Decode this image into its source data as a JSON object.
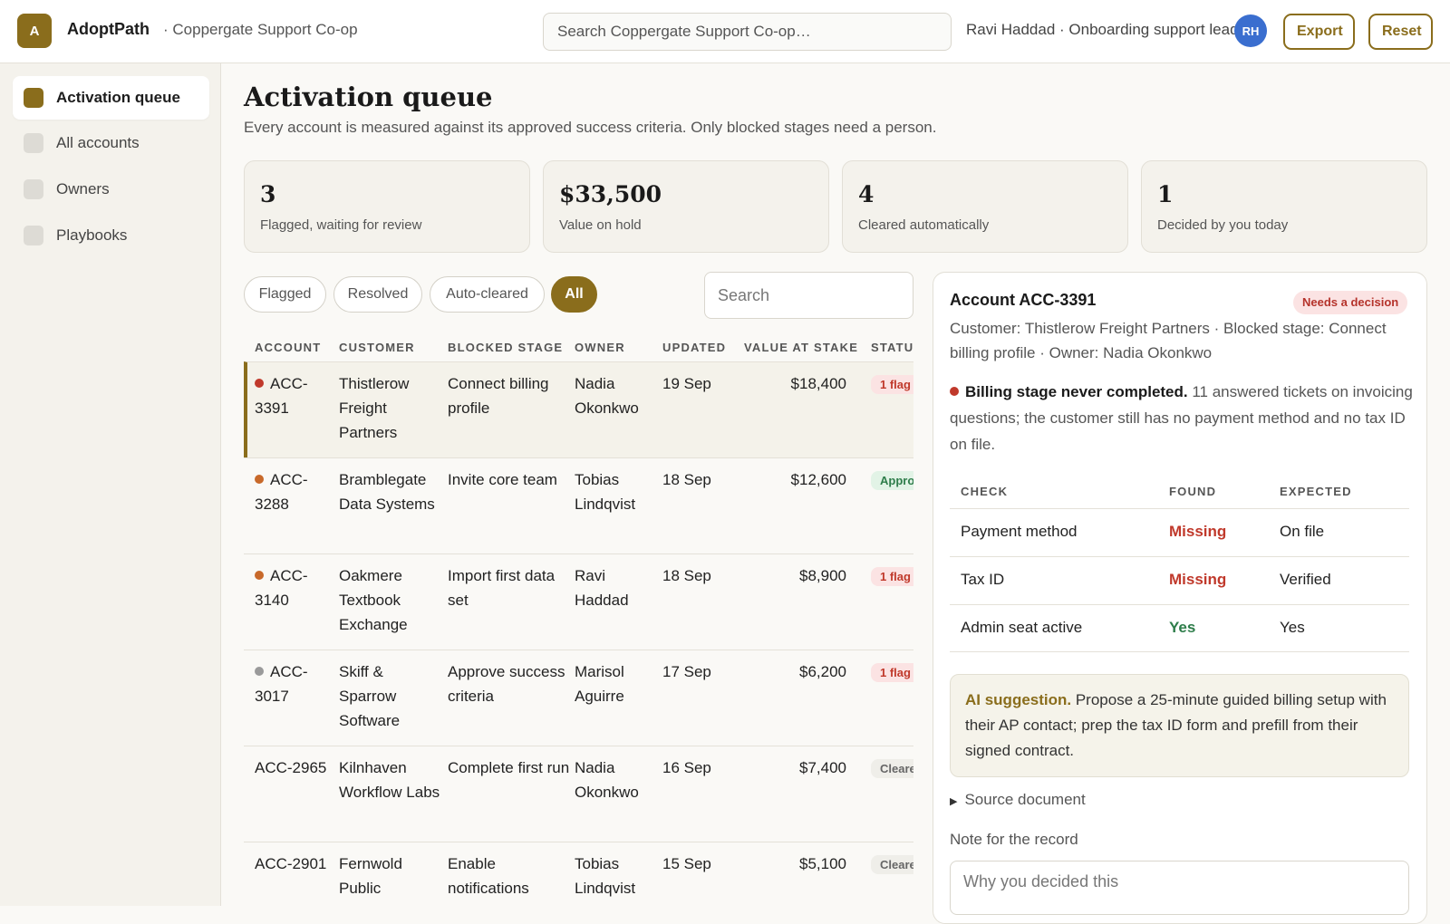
{
  "app": {
    "logo_letter": "A",
    "name": "AdoptPath",
    "org": "· Coppergate Support Co-op",
    "search_placeholder": "Search Coppergate Support Co-op…",
    "user": "Ravi Haddad · Onboarding support lead",
    "avatar_initials": "RH",
    "export_label": "Export",
    "reset_label": "Reset"
  },
  "sidebar": {
    "items": [
      {
        "label": "Activation queue",
        "active": true
      },
      {
        "label": "All accounts",
        "active": false
      },
      {
        "label": "Owners",
        "active": false
      },
      {
        "label": "Playbooks",
        "active": false
      }
    ]
  },
  "main": {
    "title": "Activation queue",
    "subtitle": "Every account is measured against its approved success criteria. Only blocked stages need a person.",
    "stats": [
      {
        "value": "3",
        "label": "Flagged, waiting for review"
      },
      {
        "value": "$33,500",
        "label": "Value on hold"
      },
      {
        "value": "4",
        "label": "Cleared automatically"
      },
      {
        "value": "1",
        "label": "Decided by you today"
      }
    ],
    "filters": [
      "Flagged",
      "Resolved",
      "Auto-cleared",
      "All"
    ],
    "active_filter": "All",
    "search_placeholder": "Search"
  },
  "table": {
    "columns": [
      "ACCOUNT",
      "CUSTOMER",
      "BLOCKED STAGE",
      "OWNER",
      "UPDATED",
      "VALUE AT STAKE",
      "STATUS"
    ],
    "rows": [
      {
        "account": "ACC-3391",
        "customer": "Thistlerow Freight Partners",
        "stage": "Connect billing profile",
        "owner": "Nadia Okonkwo",
        "updated": "19 Sep",
        "value": "$18,400",
        "status": "1 flag",
        "dot": "#c0392b",
        "selected": true
      },
      {
        "account": "ACC-3288",
        "customer": "Bramblegate Data Systems",
        "stage": "Invite core team",
        "owner": "Tobias Lindqvist",
        "updated": "18 Sep",
        "value": "$12,600",
        "status": "Approved",
        "dot": "#c8692a"
      },
      {
        "account": "ACC-3140",
        "customer": "Oakmere Textbook Exchange",
        "stage": "Import first data set",
        "owner": "Ravi Haddad",
        "updated": "18 Sep",
        "value": "$8,900",
        "status": "1 flag",
        "dot": "#c8692a"
      },
      {
        "account": "ACC-3017",
        "customer": "Skiff & Sparrow Software",
        "stage": "Approve success criteria",
        "owner": "Marisol Aguirre",
        "updated": "17 Sep",
        "value": "$6,200",
        "status": "1 flag",
        "dot": "#9a9a9a"
      },
      {
        "account": "ACC-2965",
        "customer": "Kilnhaven Workflow Labs",
        "stage": "Complete first run",
        "owner": "Nadia Okonkwo",
        "updated": "16 Sep",
        "value": "$7,400",
        "status": "Cleared",
        "dot": null
      },
      {
        "account": "ACC-2901",
        "customer": "Fernwold Public",
        "stage": "Enable notifications",
        "owner": "Tobias Lindqvist",
        "updated": "15 Sep",
        "value": "$5,100",
        "status": "Cleared",
        "dot": null
      }
    ]
  },
  "detail": {
    "title": "Account ACC-3391",
    "badge": "Needs a decision",
    "meta": "Customer: Thistlerow Freight Partners · Blocked stage: Connect billing profile · Owner: Nadia Okonkwo",
    "finding_bold": "Billing stage never completed.",
    "finding_text": " 11 answered tickets on invoicing questions; the customer still has no payment method and no tax ID on file.",
    "check_headers": [
      "CHECK",
      "FOUND",
      "EXPECTED"
    ],
    "checks": [
      {
        "check": "Payment method",
        "found": "Missing",
        "expected": "On file",
        "ok": false
      },
      {
        "check": "Tax ID",
        "found": "Missing",
        "expected": "Verified",
        "ok": false
      },
      {
        "check": "Admin seat active",
        "found": "Yes",
        "expected": "Yes",
        "ok": true
      }
    ],
    "ai_label": "AI suggestion.",
    "ai_text": " Propose a 25-minute guided billing setup with their AP contact; prep the tax ID form and prefill from their signed contract.",
    "source_label": "Source document",
    "note_label": "Note for the record",
    "note_placeholder": "Why you decided this"
  },
  "colors": {
    "accent": "#8a6d1c",
    "flag": "#c0392b",
    "ok": "#2e7d4a",
    "avatar": "#3a6ecf"
  }
}
